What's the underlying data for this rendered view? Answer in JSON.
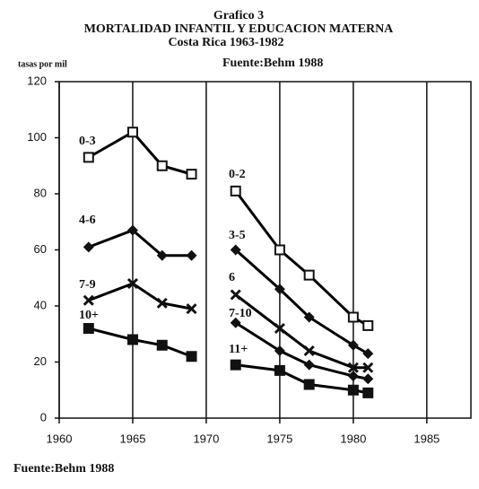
{
  "chart_data": {
    "type": "line",
    "title": "Grafico 3",
    "subtitle": "MORTALIDAD INFANTIL Y EDUCACION MATERNA",
    "subtitle2": "Costa Rica 1963-1982",
    "source_top": "Fuente:Behm 1988",
    "ylabel": "tasas por mil",
    "source_bottom": "Fuente:Behm 1988",
    "xlim": [
      1960,
      1988
    ],
    "ylim": [
      0,
      120
    ],
    "xticks": [
      1960,
      1965,
      1970,
      1975,
      1980,
      1985
    ],
    "yticks": [
      0,
      20,
      40,
      60,
      80,
      100,
      120
    ],
    "grid": true,
    "series": [
      {
        "name": "0-3",
        "color": "#000000",
        "marker": "square-open",
        "x": [
          1962,
          1965,
          1967,
          1969
        ],
        "values": [
          93,
          102,
          90,
          87
        ]
      },
      {
        "name": "0-2",
        "color": "#000000",
        "marker": "square-open",
        "x": [
          1972,
          1975,
          1977,
          1980,
          1981
        ],
        "values": [
          81,
          60,
          51,
          36,
          33
        ]
      },
      {
        "name": "4-6",
        "color": "#000000",
        "marker": "diamond",
        "x": [
          1962,
          1965,
          1967,
          1969
        ],
        "values": [
          61,
          67,
          58,
          58
        ]
      },
      {
        "name": "3-5",
        "color": "#000000",
        "marker": "diamond",
        "x": [
          1972,
          1975,
          1977,
          1980,
          1981
        ],
        "values": [
          60,
          46,
          36,
          26,
          23
        ]
      },
      {
        "name": "7-9",
        "color": "#000000",
        "marker": "x",
        "x": [
          1962,
          1965,
          1967,
          1969
        ],
        "values": [
          42,
          48,
          41,
          39
        ]
      },
      {
        "name": "6",
        "color": "#000000",
        "marker": "x",
        "x": [
          1972,
          1975,
          1977,
          1980,
          1981
        ],
        "values": [
          44,
          32,
          24,
          18,
          18
        ]
      },
      {
        "name": "7-10",
        "color": "#000000",
        "marker": "diamond",
        "x": [
          1972,
          1975,
          1977,
          1980,
          1981
        ],
        "values": [
          34,
          24,
          19,
          15,
          14
        ]
      },
      {
        "name": "10+",
        "color": "#000000",
        "marker": "square",
        "x": [
          1962,
          1965,
          1967,
          1969
        ],
        "values": [
          32,
          28,
          26,
          22
        ]
      },
      {
        "name": "11+",
        "color": "#000000",
        "marker": "square",
        "x": [
          1972,
          1975,
          1977,
          1980,
          1981
        ],
        "values": [
          19,
          17,
          12,
          10,
          9
        ]
      }
    ]
  }
}
